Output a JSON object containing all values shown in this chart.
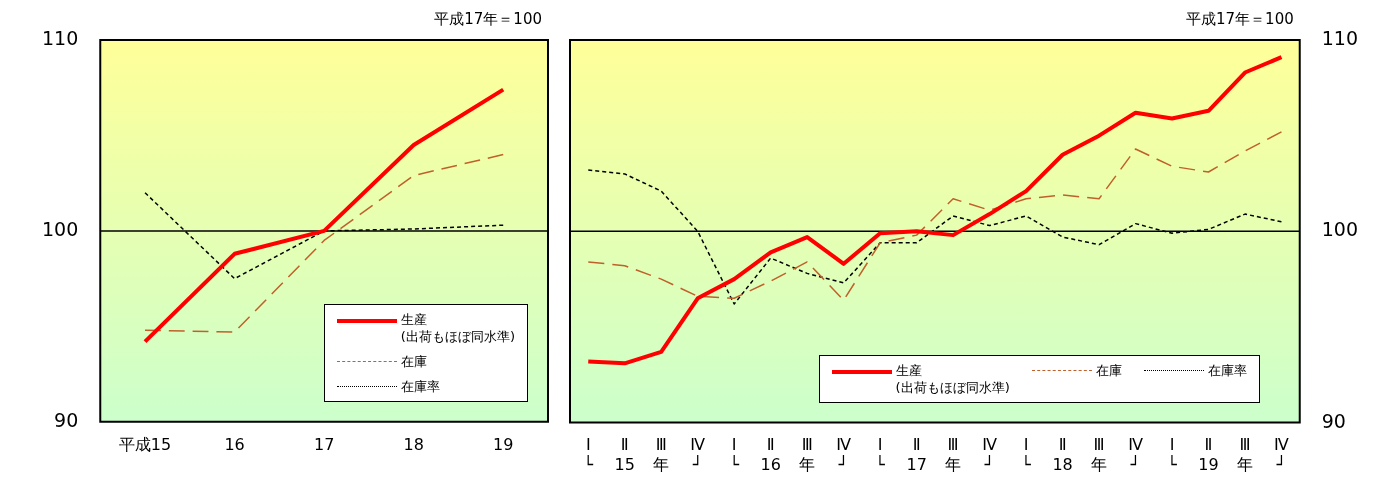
{
  "chart_data": [
    {
      "type": "line",
      "subtitle": "平成17年＝100",
      "categories": [
        "平成15",
        "16",
        "17",
        "18",
        "19"
      ],
      "ylim": [
        90,
        110
      ],
      "yticks": [
        90,
        100,
        110
      ],
      "grid": false,
      "legend": "bottom right",
      "ref_lines": [
        {
          "axis": "y",
          "value": 100,
          "color": "#000000"
        }
      ],
      "series": [
        {
          "name": "生産\n(出荷もほぼ同水準)",
          "color": "#ff0000",
          "line_style": "solid",
          "values": [
            94.2,
            98.8,
            100,
            104.5,
            107.4
          ]
        },
        {
          "name": "在庫",
          "color": "#c0602a",
          "line_style": "dashed",
          "values": [
            94.8,
            94.7,
            99.5,
            102.9,
            104.0
          ]
        },
        {
          "name": "在庫率",
          "color": "#000000",
          "line_style": "dotted",
          "values": [
            102.0,
            97.5,
            100,
            100.1,
            100.3
          ]
        }
      ]
    },
    {
      "type": "line",
      "subtitle": "平成17年＝100",
      "categories": [
        "Ⅰ\n└",
        "Ⅱ\n15",
        "Ⅲ\n年",
        "Ⅳ\n┘",
        "Ⅰ\n└",
        "Ⅱ\n16",
        "Ⅲ\n年",
        "Ⅳ\n┘",
        "Ⅰ\n└",
        "Ⅱ\n17",
        "Ⅲ\n年",
        "Ⅳ\n┘",
        "Ⅰ\n└",
        "Ⅱ\n18",
        "Ⅲ\n年",
        "Ⅳ\n┘",
        "Ⅰ\n└",
        "Ⅱ\n19",
        "Ⅲ\n年",
        "Ⅳ\n┘"
      ],
      "y2lim": [
        90,
        110
      ],
      "y2ticks": [
        90,
        100,
        110
      ],
      "grid": false,
      "legend": "bottom right",
      "ref_lines": [
        {
          "axis": "y2",
          "value": 100,
          "color": "#000000"
        }
      ],
      "series": [
        {
          "name": "生産\n(出荷もほぼ同水準)",
          "color": "#ff0000",
          "line_style": "solid",
          "axis": "y2",
          "values": [
            93.2,
            93.1,
            93.7,
            96.5,
            97.5,
            98.9,
            99.7,
            98.3,
            99.9,
            100.0,
            99.8,
            100.9,
            102.1,
            104.0,
            105.0,
            106.2,
            105.9,
            106.3,
            108.3,
            109.1
          ]
        },
        {
          "name": "在庫",
          "color": "#c0602a",
          "line_style": "dashed",
          "axis": "y2",
          "values": [
            98.4,
            98.2,
            97.5,
            96.6,
            96.5,
            97.4,
            98.4,
            96.4,
            99.4,
            99.8,
            101.7,
            101.1,
            101.7,
            101.9,
            101.7,
            104.3,
            103.4,
            103.1,
            104.2,
            105.2
          ]
        },
        {
          "name": "在庫率",
          "color": "#000000",
          "line_style": "dotted",
          "axis": "y2",
          "values": [
            103.2,
            103.0,
            102.1,
            100.0,
            96.2,
            98.6,
            97.8,
            97.3,
            99.4,
            99.4,
            100.8,
            100.3,
            100.8,
            99.7,
            99.3,
            100.4,
            99.9,
            100.1,
            100.9,
            100.5
          ]
        }
      ]
    }
  ]
}
